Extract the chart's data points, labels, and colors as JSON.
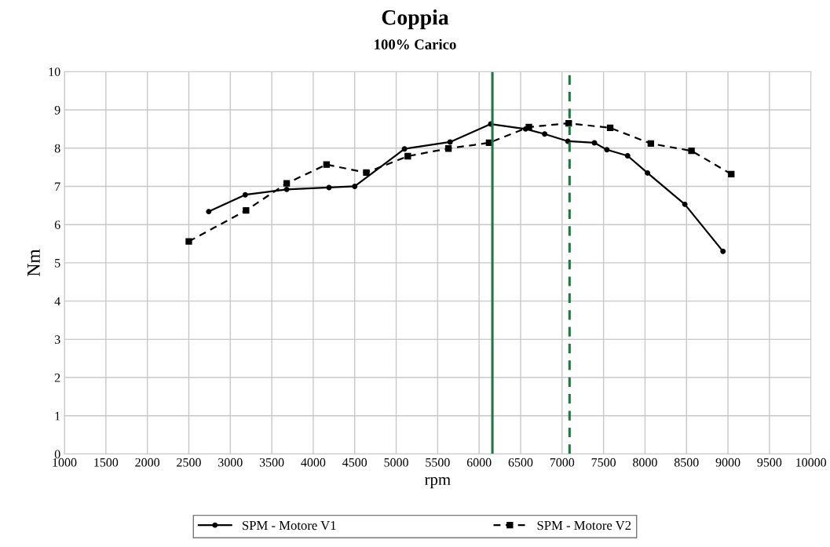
{
  "chart_data": {
    "type": "line",
    "title": "Coppia",
    "subtitle": "100% Carico",
    "xlabel": "rpm",
    "ylabel": "Nm",
    "xlim": [
      1000,
      10000
    ],
    "xticks": [
      1000,
      1500,
      2000,
      2500,
      3000,
      3500,
      4000,
      4500,
      5000,
      5500,
      6000,
      6500,
      7000,
      7500,
      8000,
      8500,
      9000,
      9500,
      10000
    ],
    "ylim": [
      0,
      10
    ],
    "yticks": [
      0,
      1,
      2,
      3,
      4,
      5,
      6,
      7,
      8,
      9,
      10
    ],
    "grid": true,
    "legend": "bottom",
    "series": [
      {
        "name": "SPM - Motore V1",
        "color": "#000000",
        "line_style": "solid",
        "marker": "circle",
        "x": [
          2740,
          3180,
          3680,
          4190,
          4500,
          5100,
          5650,
          6140,
          6560,
          6790,
          7070,
          7390,
          7540,
          7790,
          8030,
          8480,
          8940
        ],
        "values": [
          6.34,
          6.78,
          6.92,
          6.97,
          7.0,
          7.98,
          8.16,
          8.63,
          8.5,
          8.37,
          8.18,
          8.14,
          7.96,
          7.8,
          7.35,
          6.53,
          5.3
        ]
      },
      {
        "name": "SPM - Motore V2",
        "color": "#000000",
        "line_style": "dashed",
        "marker": "square",
        "x": [
          2500,
          3190,
          3680,
          4160,
          4640,
          5140,
          5630,
          6120,
          6600,
          7080,
          7580,
          8070,
          8560,
          9040
        ],
        "values": [
          5.56,
          6.37,
          7.08,
          7.57,
          7.36,
          7.79,
          7.99,
          8.14,
          8.55,
          8.65,
          8.53,
          8.12,
          7.93,
          7.32
        ]
      }
    ],
    "ref_lines": [
      {
        "axis": "x",
        "value": 6160,
        "color": "#1a7a3e",
        "line_style": "solid"
      },
      {
        "axis": "x",
        "value": 7090,
        "color": "#1a7a3e",
        "line_style": "dashed"
      }
    ]
  }
}
